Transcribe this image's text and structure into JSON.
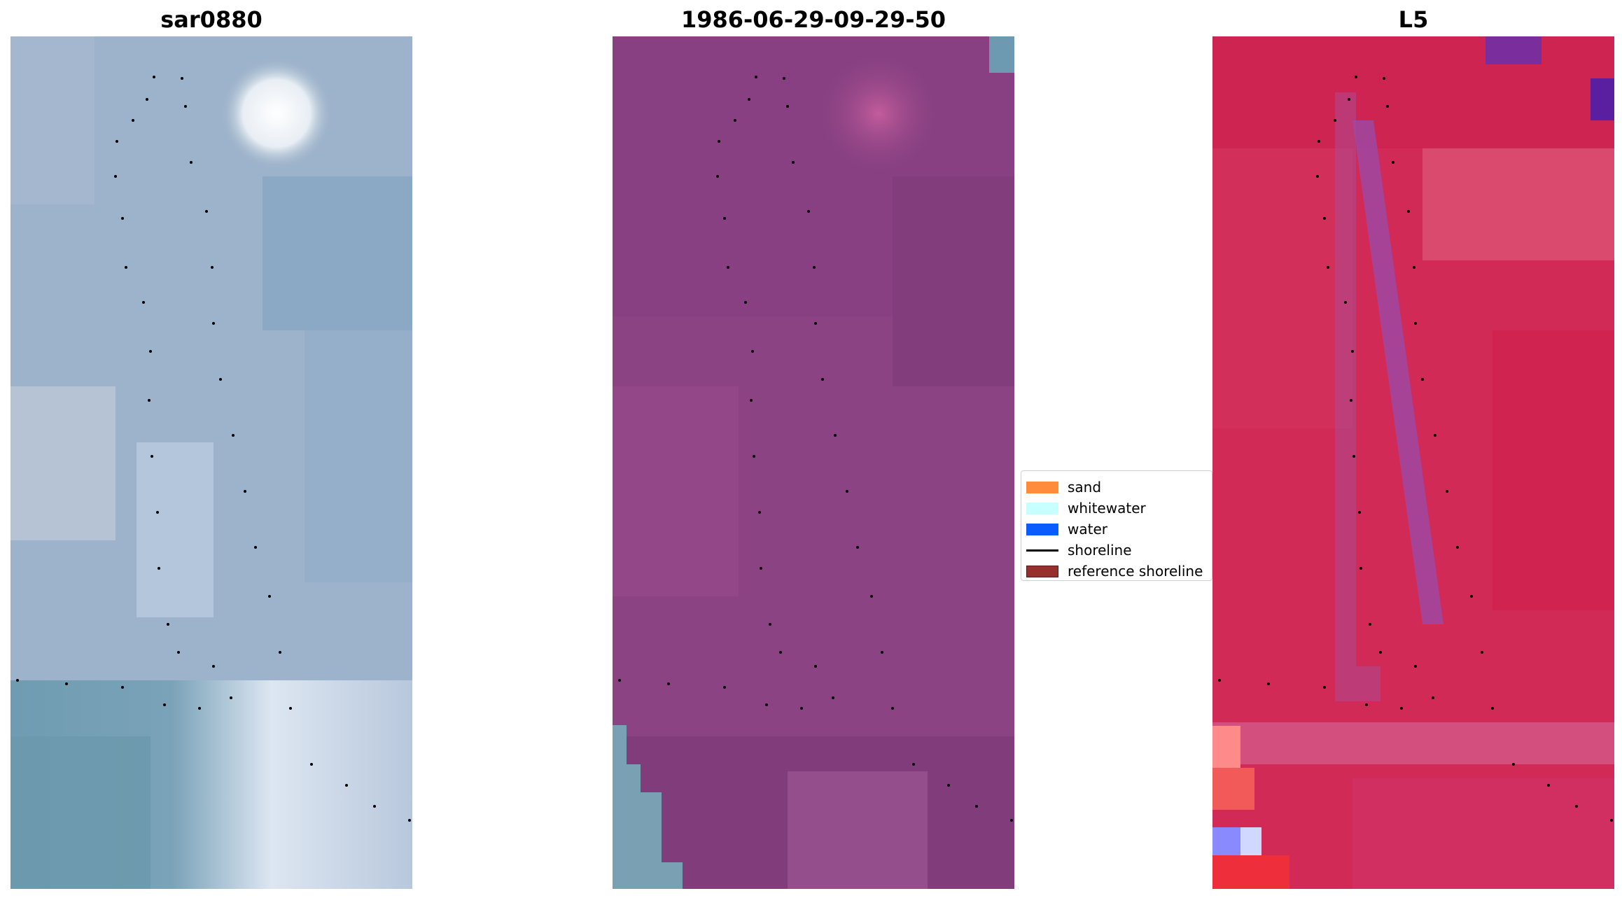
{
  "panels": [
    {
      "title": "sar0880",
      "palette": "rgb"
    },
    {
      "title": "1986-06-29-09-29-50",
      "palette": "classified"
    },
    {
      "title": "L5",
      "palette": "index"
    }
  ],
  "legend": {
    "items": [
      {
        "label": "sand",
        "kind": "patch",
        "color": "#ff8c3c"
      },
      {
        "label": "whitewater",
        "kind": "patch",
        "color": "#c8ffff"
      },
      {
        "label": "water",
        "kind": "patch",
        "color": "#0a5cff"
      },
      {
        "label": "shoreline",
        "kind": "line",
        "color": "#000000"
      },
      {
        "label": "reference shoreline",
        "kind": "patch",
        "color": "#96302c"
      }
    ]
  },
  "colors": {
    "rgb_base": "#8fa9c4",
    "classified_base": "#8b4383",
    "index_base": "#d12a56",
    "shoreline_dots": "#000000"
  }
}
